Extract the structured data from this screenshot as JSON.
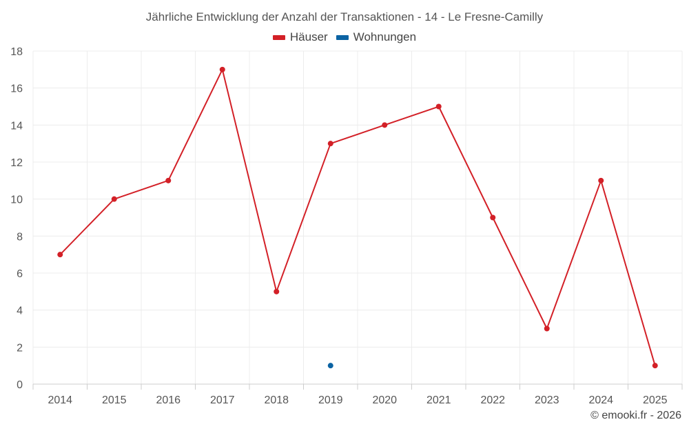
{
  "chart_data": {
    "type": "line",
    "title": "Jährliche Entwicklung der Anzahl der Transaktionen - 14 - Le Fresne-Camilly",
    "categories": [
      "2014",
      "2015",
      "2016",
      "2017",
      "2018",
      "2019",
      "2020",
      "2021",
      "2022",
      "2023",
      "2024",
      "2025"
    ],
    "series": [
      {
        "name": "Häuser",
        "color": "#d32027",
        "values": [
          7,
          10,
          11,
          17,
          5,
          13,
          14,
          15,
          9,
          3,
          11,
          1
        ]
      },
      {
        "name": "Wohnungen",
        "color": "#0b63a3",
        "values": [
          null,
          null,
          null,
          null,
          null,
          1,
          null,
          null,
          null,
          null,
          null,
          null
        ]
      }
    ],
    "ylim": [
      0,
      18
    ],
    "yticks": [
      0,
      2,
      4,
      6,
      8,
      10,
      12,
      14,
      16,
      18
    ],
    "xlabel": "",
    "ylabel": "",
    "grid": true,
    "legend_position": "top-center"
  },
  "credit": "© emooki.fr - 2026"
}
